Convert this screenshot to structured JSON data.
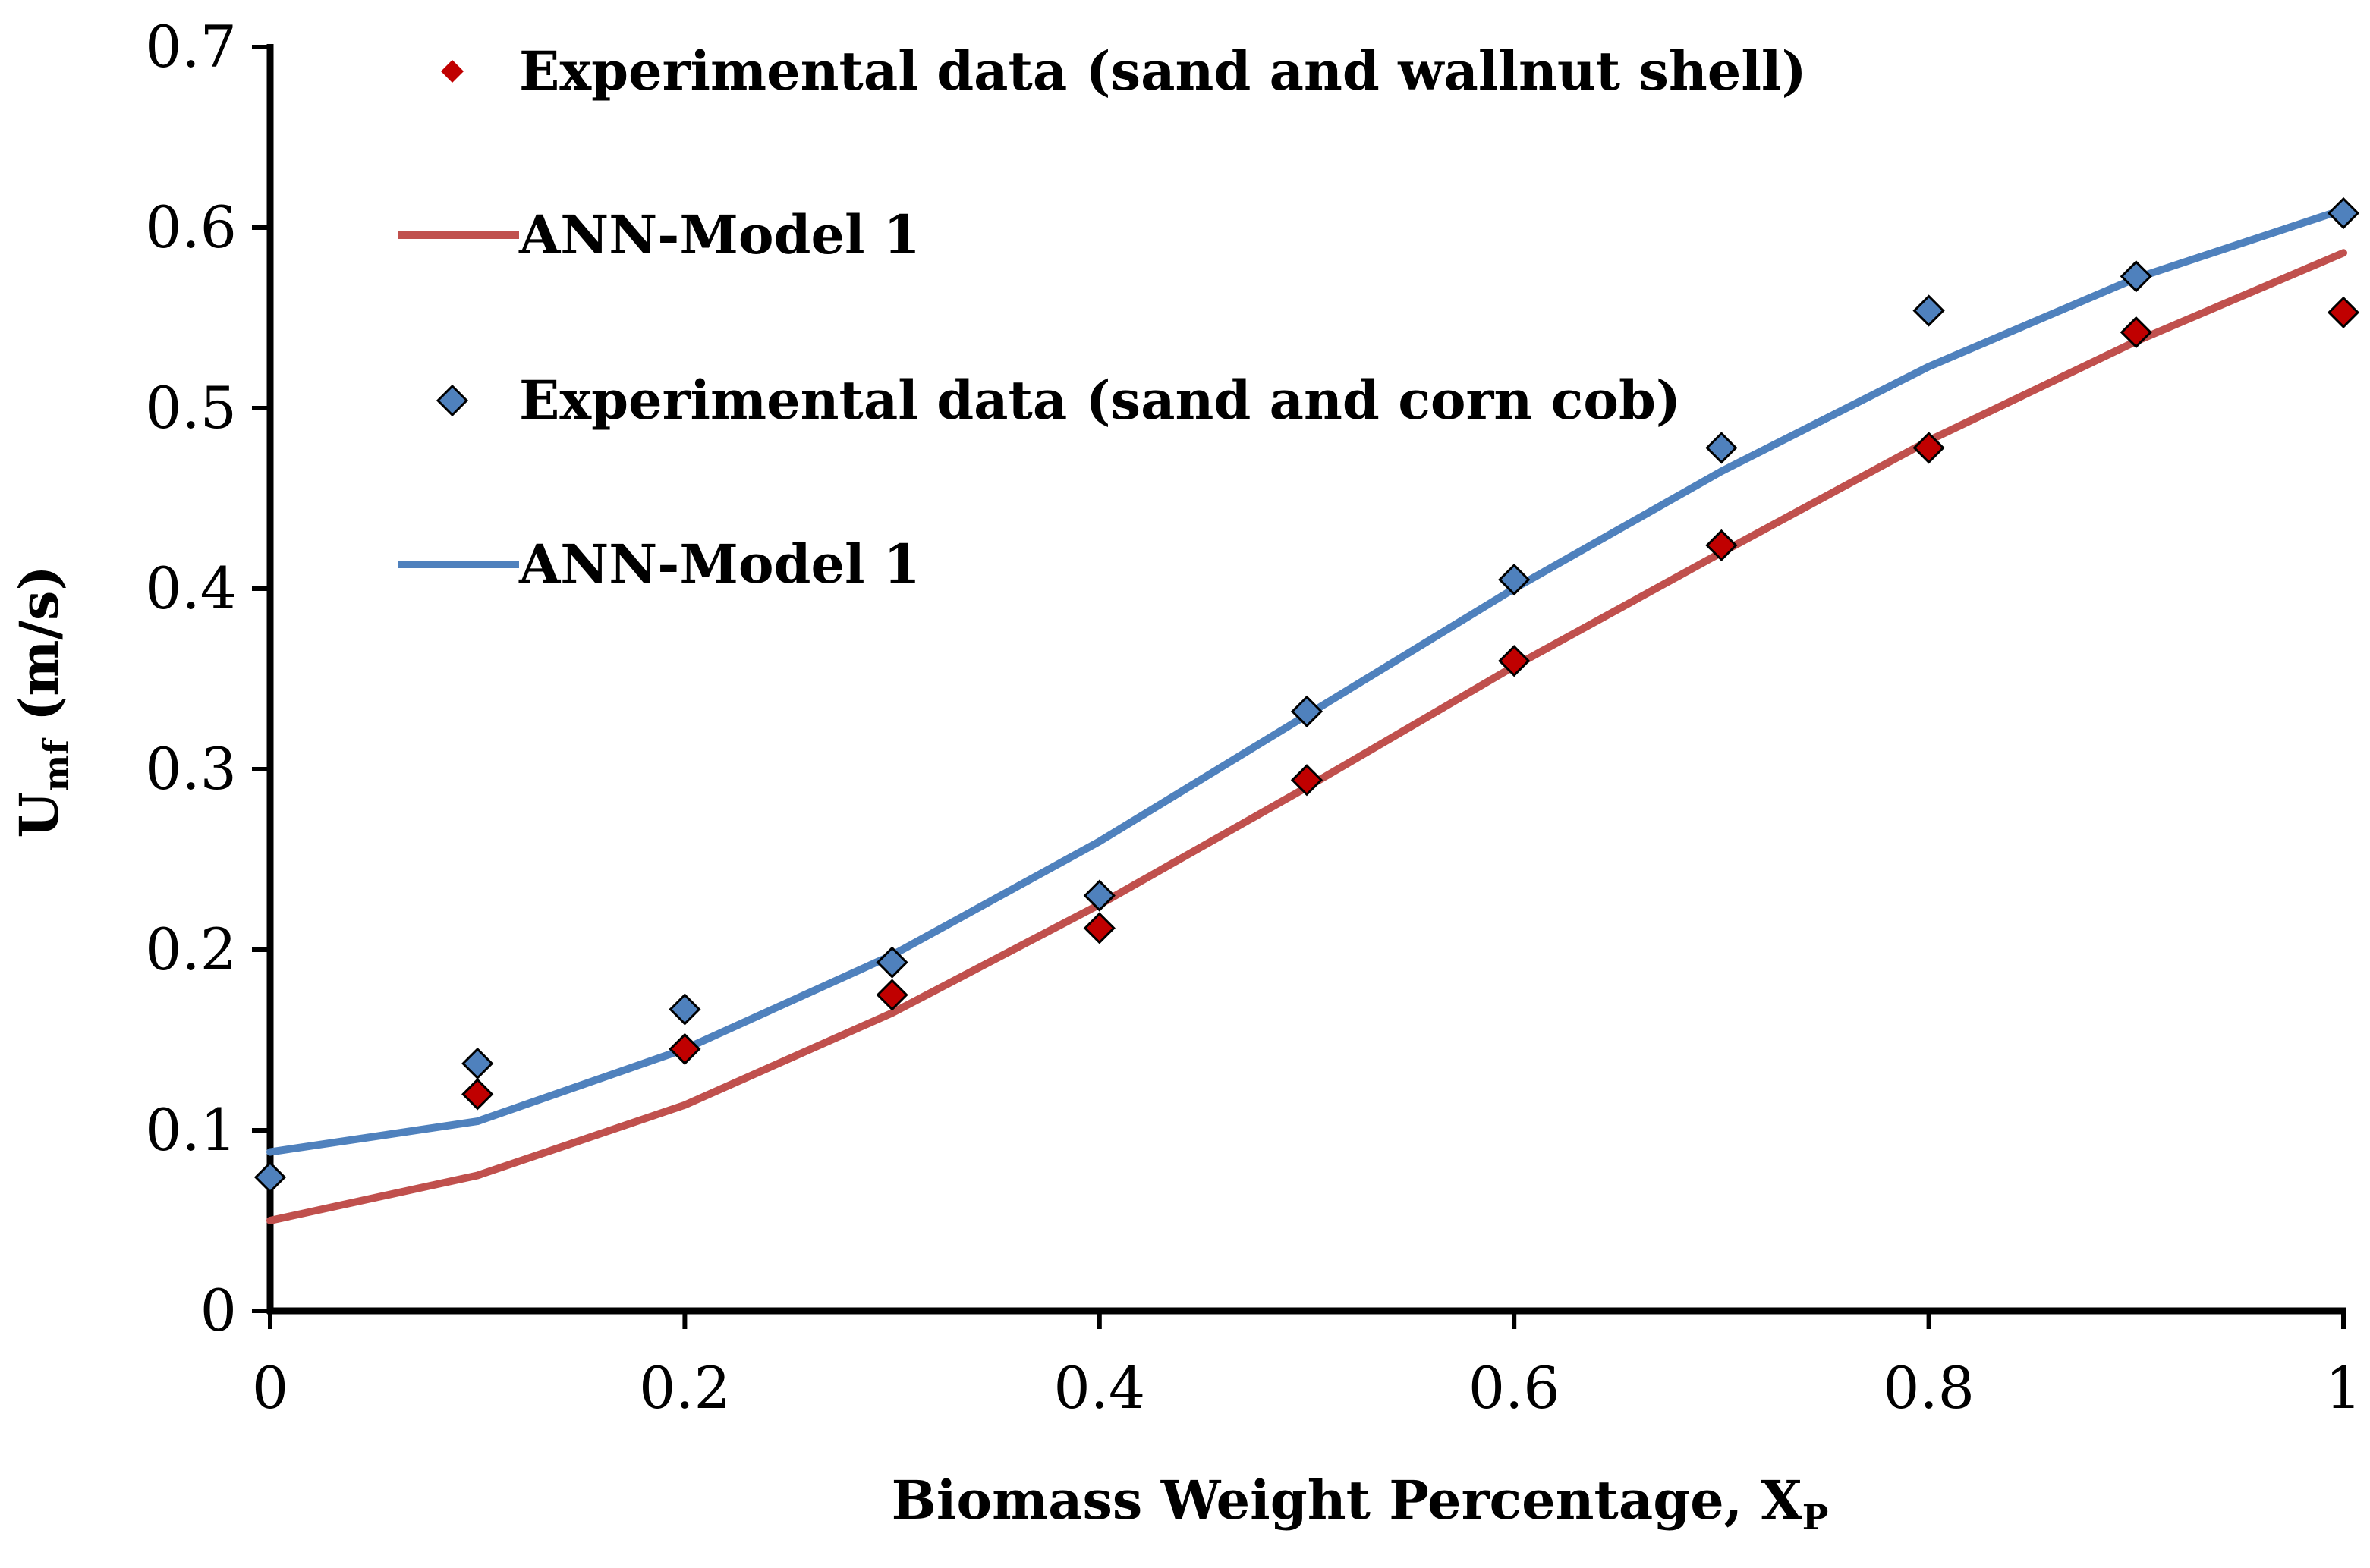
{
  "chart_data": {
    "type": "scatter",
    "title": "",
    "xlabel_main": "Biomass Weight Percentage, X",
    "xlabel_sub": "P",
    "ylabel_main": "U",
    "ylabel_sub": "mf",
    "ylabel_unit": " (m/s)",
    "xlim": [
      0,
      1
    ],
    "ylim": [
      0,
      0.7
    ],
    "x_ticks": [
      "0",
      "0.2",
      "0.4",
      "0.6",
      "0.8",
      "1"
    ],
    "y_ticks": [
      "0",
      "0.1",
      "0.2",
      "0.3",
      "0.4",
      "0.5",
      "0.6",
      "0.7"
    ],
    "grid": false,
    "legend_position": "top-left",
    "series": [
      {
        "name": "Experimental data (sand and wallnut shell)",
        "kind": "markers",
        "marker": "diamond",
        "color": "#c00000",
        "x": [
          0.1,
          0.2,
          0.3,
          0.4,
          0.5,
          0.6,
          0.7,
          0.8,
          0.9,
          1.0
        ],
        "y": [
          0.12,
          0.145,
          0.175,
          0.212,
          0.294,
          0.36,
          0.424,
          0.478,
          0.542,
          0.553
        ]
      },
      {
        "name": "ANN-Model 1",
        "kind": "line",
        "color": "#c0504d",
        "x": [
          0,
          0.1,
          0.2,
          0.3,
          0.4,
          0.5,
          0.6,
          0.7,
          0.8,
          0.9,
          1.0
        ],
        "y": [
          0.05,
          0.075,
          0.114,
          0.165,
          0.225,
          0.29,
          0.357,
          0.42,
          0.482,
          0.537,
          0.586
        ]
      },
      {
        "name": "Experimental data (sand and corn cob)",
        "kind": "markers",
        "marker": "diamond",
        "color": "#4f81bd",
        "x": [
          0,
          0.1,
          0.2,
          0.3,
          0.4,
          0.5,
          0.6,
          0.7,
          0.8,
          0.9,
          1.0
        ],
        "y": [
          0.074,
          0.137,
          0.167,
          0.193,
          0.23,
          0.332,
          0.405,
          0.478,
          0.554,
          0.573,
          0.608
        ]
      },
      {
        "name": "ANN-Model 1",
        "kind": "line",
        "color": "#4f81bd",
        "x": [
          0,
          0.1,
          0.2,
          0.3,
          0.4,
          0.5,
          0.6,
          0.7,
          0.8,
          0.9,
          1.0
        ],
        "y": [
          0.088,
          0.105,
          0.145,
          0.197,
          0.26,
          0.33,
          0.4,
          0.465,
          0.523,
          0.572,
          0.61
        ]
      }
    ]
  }
}
